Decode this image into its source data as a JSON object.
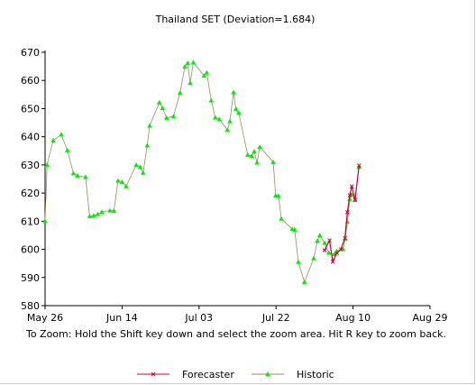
{
  "chart_data": {
    "type": "line",
    "title": "Thailand SET  (Deviation=1.684)",
    "xlabel": "",
    "ylabel": "",
    "ylim": [
      580,
      670
    ],
    "yticks": [
      580,
      590,
      600,
      610,
      620,
      630,
      640,
      650,
      660,
      670
    ],
    "xlim": [
      0,
      95
    ],
    "xticks": [
      {
        "label": "May 26",
        "x": 0
      },
      {
        "label": "Jun 14",
        "x": 19
      },
      {
        "label": "Jul 03",
        "x": 38
      },
      {
        "label": "Jul 22",
        "x": 57
      },
      {
        "label": "Aug 10",
        "x": 76
      },
      {
        "label": "Aug 29",
        "x": 95
      }
    ],
    "grid": false,
    "legend_position": "bottom",
    "series": [
      {
        "name": "Historic",
        "color": "#00ee00",
        "marker": "triangle",
        "points": [
          [
            0,
            610
          ],
          [
            0.5,
            630
          ],
          [
            2,
            638.7
          ],
          [
            4,
            640.8
          ],
          [
            5.5,
            635.2
          ],
          [
            7,
            627
          ],
          [
            8,
            626.2
          ],
          [
            10,
            625.7
          ],
          [
            11,
            611.8
          ],
          [
            12,
            612
          ],
          [
            13,
            612.5
          ],
          [
            14,
            613.3
          ],
          [
            16,
            613.8
          ],
          [
            17,
            613.7
          ],
          [
            18,
            624.4
          ],
          [
            19,
            623.9
          ],
          [
            20,
            622.4
          ],
          [
            22.5,
            630
          ],
          [
            23.5,
            629.2
          ],
          [
            24.2,
            627.2
          ],
          [
            25.2,
            636.9
          ],
          [
            25.8,
            643.9
          ],
          [
            28.2,
            652.2
          ],
          [
            29,
            650.2
          ],
          [
            30,
            646.7
          ],
          [
            31.7,
            647.3
          ],
          [
            33.3,
            655.6
          ],
          [
            34.5,
            664.9
          ],
          [
            35.2,
            666.2
          ],
          [
            35.8,
            659.1
          ],
          [
            36.6,
            666.4
          ],
          [
            39.2,
            661.7
          ],
          [
            39.9,
            662.8
          ],
          [
            41,
            652.9
          ],
          [
            42,
            646.8
          ],
          [
            43,
            646.2
          ],
          [
            45,
            642.4
          ],
          [
            45.6,
            645.5
          ],
          [
            46.5,
            655.8
          ],
          [
            47.1,
            649.9
          ],
          [
            47.8,
            648.5
          ],
          [
            50,
            633.6
          ],
          [
            51,
            633.2
          ],
          [
            51.6,
            634.8
          ],
          [
            52.3,
            630.8
          ],
          [
            53,
            636.4
          ],
          [
            56.3,
            631
          ],
          [
            56.9,
            619.1
          ],
          [
            57.6,
            619
          ],
          [
            58.3,
            610.9
          ],
          [
            61,
            607.2
          ],
          [
            61.6,
            607
          ],
          [
            62.5,
            595.5
          ],
          [
            64,
            588.4
          ],
          [
            66.3,
            596.8
          ],
          [
            67.2,
            603
          ],
          [
            67.8,
            605
          ],
          [
            69,
            602.3
          ],
          [
            70,
            598.8
          ],
          [
            71.4,
            598.3
          ],
          [
            72,
            599.4
          ],
          [
            73.5,
            600.1
          ],
          [
            74.1,
            603.8
          ],
          [
            74.6,
            609.8
          ],
          [
            75.2,
            617.9
          ],
          [
            75.7,
            619.5
          ],
          [
            76.5,
            617.5
          ],
          [
            77.5,
            629.3
          ]
        ]
      },
      {
        "name": "Forecaster",
        "color": "#cc0033",
        "marker": "cross",
        "points": [
          [
            69,
            599.7
          ],
          [
            70.2,
            603.2
          ],
          [
            71,
            595.6
          ],
          [
            72,
            598.7
          ],
          [
            73,
            600
          ],
          [
            74,
            604
          ],
          [
            74.6,
            613.2
          ],
          [
            75.2,
            619.2
          ],
          [
            75.7,
            622.4
          ],
          [
            76.5,
            617.6
          ],
          [
            77.5,
            629.8
          ]
        ]
      }
    ],
    "annotations": [
      "To Zoom: Hold the Shift key down and select the zoom area. Hit R key to zoom back."
    ],
    "legend": [
      {
        "name": "Forecaster",
        "color": "#cc0033"
      },
      {
        "name": "Historic",
        "color": "#00ee00"
      }
    ]
  }
}
